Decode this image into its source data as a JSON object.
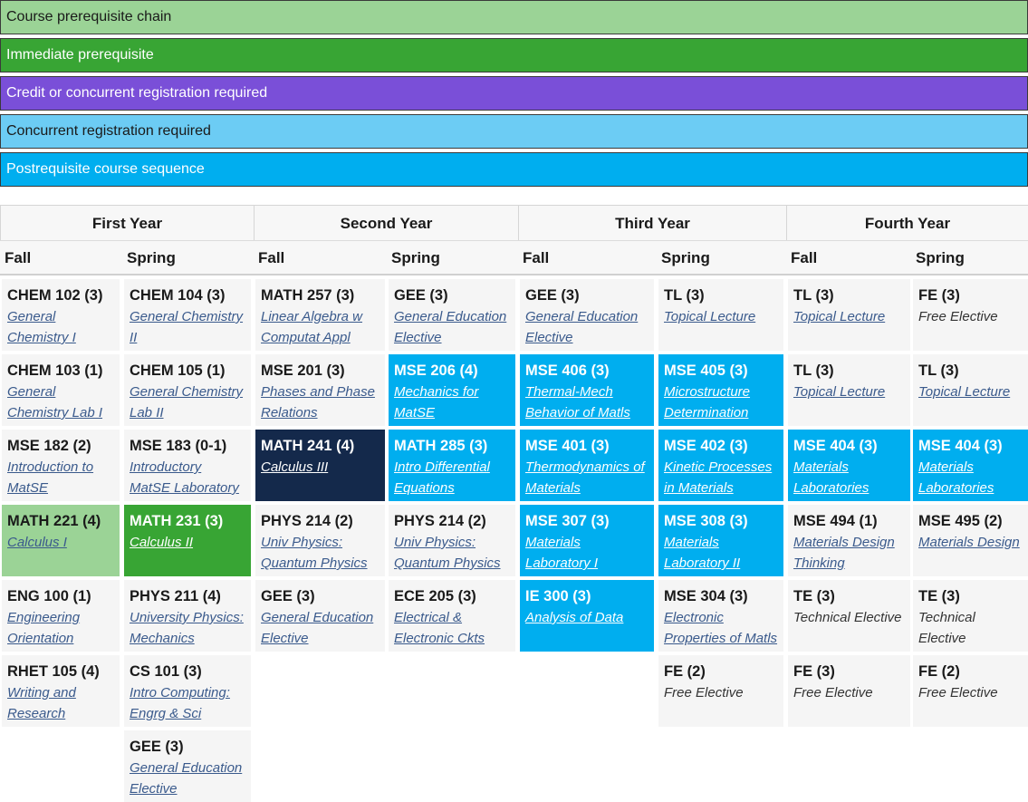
{
  "legend": [
    {
      "label": "Course prerequisite chain",
      "kind": "chain"
    },
    {
      "label": "Immediate prerequisite",
      "kind": "immediate"
    },
    {
      "label": "Credit or concurrent registration required",
      "kind": "credit"
    },
    {
      "label": "Concurrent registration required",
      "kind": "concurrent"
    },
    {
      "label": "Postrequisite course sequence",
      "kind": "post"
    }
  ],
  "colors": {
    "chain": "#9bd396",
    "immediate": "#38a534",
    "credit": "#7a4fd8",
    "concurrent": "#6cccf4",
    "post": "#00aeef",
    "selected": "#14294b"
  },
  "years": [
    "First Year",
    "Second Year",
    "Third Year",
    "Fourth Year"
  ],
  "semesters": [
    "Fall",
    "Spring",
    "Fall",
    "Spring",
    "Fall",
    "Spring",
    "Fall",
    "Spring"
  ],
  "courses": [
    {
      "col": 0,
      "row": 0,
      "code": "CHEM 102 (3)",
      "title": "General Chemistry I",
      "state": ""
    },
    {
      "col": 0,
      "row": 1,
      "code": "CHEM 103 (1)",
      "title": "General Chemistry Lab I",
      "state": ""
    },
    {
      "col": 0,
      "row": 2,
      "code": "MSE 182 (2)",
      "title": "Introduction to MatSE",
      "state": ""
    },
    {
      "col": 0,
      "row": 3,
      "code": "MATH 221 (4)",
      "title": "Calculus I",
      "state": "chain"
    },
    {
      "col": 0,
      "row": 4,
      "code": "ENG 100 (1)",
      "title": "Engineering Orientation",
      "state": ""
    },
    {
      "col": 0,
      "row": 5,
      "code": "RHET 105 (4)",
      "title": "Writing and Research",
      "state": ""
    },
    {
      "col": 1,
      "row": 0,
      "code": "CHEM 104 (3)",
      "title": "General Chemistry II",
      "state": ""
    },
    {
      "col": 1,
      "row": 1,
      "code": "CHEM 105 (1)",
      "title": "General Chemistry Lab II",
      "state": ""
    },
    {
      "col": 1,
      "row": 2,
      "code": "MSE 183 (0-1)",
      "title": "Introductory MatSE Laboratory",
      "state": ""
    },
    {
      "col": 1,
      "row": 3,
      "code": "MATH 231 (3)",
      "title": "Calculus II",
      "state": "immediate"
    },
    {
      "col": 1,
      "row": 4,
      "code": "PHYS 211 (4)",
      "title": "University Physics: Mechanics",
      "state": ""
    },
    {
      "col": 1,
      "row": 5,
      "code": "CS 101 (3)",
      "title": "Intro Computing: Engrg & Sci",
      "state": ""
    },
    {
      "col": 1,
      "row": 6,
      "code": "GEE (3)",
      "title": "General Education Elective",
      "state": ""
    },
    {
      "col": 2,
      "row": 0,
      "code": "MATH 257 (3)",
      "title": "Linear Algebra w Computat Appl",
      "state": ""
    },
    {
      "col": 2,
      "row": 1,
      "code": "MSE 201 (3)",
      "title": "Phases and Phase Relations",
      "state": ""
    },
    {
      "col": 2,
      "row": 2,
      "code": "MATH 241 (4)",
      "title": "Calculus III",
      "state": "selected"
    },
    {
      "col": 2,
      "row": 3,
      "code": "PHYS 214 (2)",
      "title": "Univ Physics: Quantum Physics",
      "state": ""
    },
    {
      "col": 2,
      "row": 4,
      "code": "GEE (3)",
      "title": "General Education Elective",
      "state": ""
    },
    {
      "col": 3,
      "row": 0,
      "code": "GEE (3)",
      "title": "General Education Elective",
      "state": ""
    },
    {
      "col": 3,
      "row": 1,
      "code": "MSE 206 (4)",
      "title": "Mechanics for MatSE",
      "state": "post"
    },
    {
      "col": 3,
      "row": 2,
      "code": "MATH 285 (3)",
      "title": "Intro Differential Equations",
      "state": "post"
    },
    {
      "col": 3,
      "row": 3,
      "code": "PHYS 214 (2)",
      "title": "Univ Physics: Quantum Physics",
      "state": ""
    },
    {
      "col": 3,
      "row": 4,
      "code": "ECE 205 (3)",
      "title": "Electrical & Electronic Ckts",
      "state": ""
    },
    {
      "col": 4,
      "row": 0,
      "code": "GEE (3)",
      "title": "General Education Elective",
      "state": ""
    },
    {
      "col": 4,
      "row": 1,
      "code": "MSE 406 (3)",
      "title": "Thermal-Mech Behavior of Matls",
      "state": "post"
    },
    {
      "col": 4,
      "row": 2,
      "code": "MSE 401 (3)",
      "title": "Thermodynamics of Materials",
      "state": "post"
    },
    {
      "col": 4,
      "row": 3,
      "code": "MSE 307 (3)",
      "title": "Materials Laboratory I",
      "state": "post"
    },
    {
      "col": 4,
      "row": 4,
      "code": "IE 300 (3)",
      "title": "Analysis of Data",
      "state": "post"
    },
    {
      "col": 5,
      "row": 0,
      "code": "TL (3)",
      "title": "Topical Lecture",
      "state": ""
    },
    {
      "col": 5,
      "row": 1,
      "code": "MSE 405 (3)",
      "title": "Microstructure Determination",
      "state": "post"
    },
    {
      "col": 5,
      "row": 2,
      "code": "MSE 402 (3)",
      "title": "Kinetic Processes in Materials",
      "state": "post"
    },
    {
      "col": 5,
      "row": 3,
      "code": "MSE 308 (3)",
      "title": "Materials Laboratory II",
      "state": "post"
    },
    {
      "col": 5,
      "row": 4,
      "code": "MSE 304 (3)",
      "title": "Electronic Properties of Matls",
      "state": ""
    },
    {
      "col": 5,
      "row": 5,
      "code": "FE (2)",
      "title": "Free Elective",
      "state": "",
      "plain": true
    },
    {
      "col": 6,
      "row": 0,
      "code": "TL (3)",
      "title": "Topical Lecture",
      "state": ""
    },
    {
      "col": 6,
      "row": 1,
      "code": "TL (3)",
      "title": "Topical Lecture",
      "state": ""
    },
    {
      "col": 6,
      "row": 2,
      "code": "MSE 404 (3)",
      "title": "Materials Laboratories",
      "state": "post"
    },
    {
      "col": 6,
      "row": 3,
      "code": "MSE 494 (1)",
      "title": "Materials Design Thinking",
      "state": ""
    },
    {
      "col": 6,
      "row": 4,
      "code": "TE (3)",
      "title": "Technical Elective",
      "state": "",
      "plain": true
    },
    {
      "col": 6,
      "row": 5,
      "code": "FE (3)",
      "title": "Free Elective",
      "state": "",
      "plain": true
    },
    {
      "col": 7,
      "row": 0,
      "code": "FE (3)",
      "title": "Free Elective",
      "state": "",
      "plain": true
    },
    {
      "col": 7,
      "row": 1,
      "code": "TL (3)",
      "title": "Topical Lecture",
      "state": ""
    },
    {
      "col": 7,
      "row": 2,
      "code": "MSE 404 (3)",
      "title": "Materials Laboratories",
      "state": "post"
    },
    {
      "col": 7,
      "row": 3,
      "code": "MSE 495 (2)",
      "title": "Materials Design",
      "state": ""
    },
    {
      "col": 7,
      "row": 4,
      "code": "TE (3)",
      "title": "Technical Elective",
      "state": "",
      "plain": true
    },
    {
      "col": 7,
      "row": 5,
      "code": "FE (2)",
      "title": "Free Elective",
      "state": "",
      "plain": true
    }
  ]
}
